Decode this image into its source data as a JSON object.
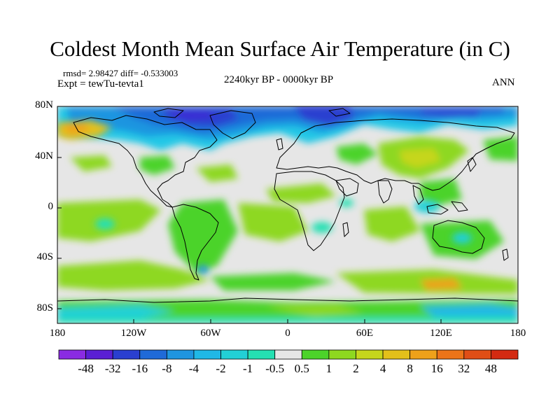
{
  "header": {
    "title": "Coldest Month Mean Surface Air Temperature (in C)",
    "stats": "rmsd= 2.98427 diff= -0.533003",
    "experiment": "Expt = tewTu-tevta1",
    "period": "2240kyr BP - 0000kyr BP",
    "season": "ANN"
  },
  "map": {
    "projection": "cylindrical-equidistant",
    "lat_range": [
      -90,
      90
    ],
    "lon_range": [
      -180,
      180
    ],
    "lat_ticks": [
      "80N",
      "40N",
      "0",
      "40S",
      "80S"
    ],
    "lon_ticks": [
      "180",
      "120W",
      "60W",
      "0",
      "60E",
      "120E",
      "180"
    ],
    "background_color": "#e6e6e6",
    "coastline_color": "#000000"
  },
  "colorbar": {
    "levels": [
      "-48",
      "-32",
      "-16",
      "-8",
      "-4",
      "-2",
      "-1",
      "-0.5",
      "0.5",
      "1",
      "2",
      "4",
      "8",
      "16",
      "32",
      "48"
    ],
    "colors": [
      "#8a2be2",
      "#5a1fd4",
      "#2a3fd0",
      "#1f6ad8",
      "#1f95e0",
      "#20b8e6",
      "#22d0d6",
      "#25e0b2",
      "#e6e6e6",
      "#4cd32a",
      "#8ed820",
      "#c6d61c",
      "#e3c01a",
      "#eea11a",
      "#ec7418",
      "#e04e16",
      "#d42a12"
    ]
  }
}
